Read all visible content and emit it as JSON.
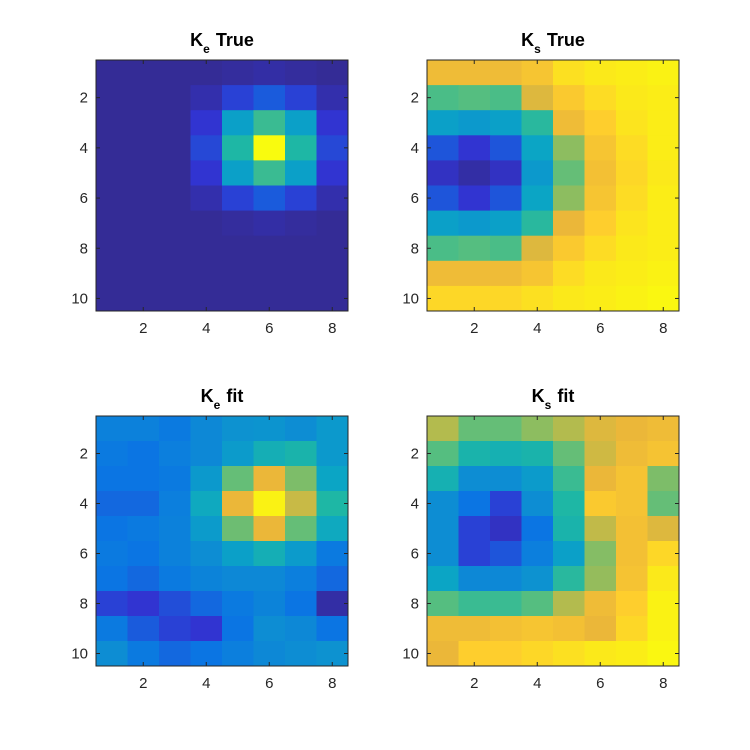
{
  "figure": {
    "background": "#ffffff"
  },
  "colormap": "parula",
  "chart_data": [
    {
      "type": "heatmap",
      "title_main": "K",
      "title_sub": "e",
      "title_rest": "True",
      "x": [
        1,
        2,
        3,
        4,
        5,
        6,
        7,
        8
      ],
      "y": [
        1,
        2,
        3,
        4,
        5,
        6,
        7,
        8,
        9,
        10
      ],
      "xticks": [
        "2",
        "4",
        "6",
        "8"
      ],
      "yticks": [
        "2",
        "4",
        "6",
        "8",
        "10"
      ],
      "clim": [
        0,
        1
      ],
      "values": [
        [
          0.02,
          0.02,
          0.02,
          0.02,
          0.03,
          0.04,
          0.03,
          0.02
        ],
        [
          0.02,
          0.02,
          0.02,
          0.05,
          0.12,
          0.16,
          0.12,
          0.05
        ],
        [
          0.02,
          0.02,
          0.02,
          0.1,
          0.38,
          0.55,
          0.38,
          0.1
        ],
        [
          0.02,
          0.02,
          0.02,
          0.13,
          0.5,
          1.0,
          0.5,
          0.13
        ],
        [
          0.02,
          0.02,
          0.02,
          0.1,
          0.38,
          0.55,
          0.38,
          0.1
        ],
        [
          0.02,
          0.02,
          0.02,
          0.05,
          0.12,
          0.16,
          0.12,
          0.05
        ],
        [
          0.02,
          0.02,
          0.02,
          0.02,
          0.03,
          0.04,
          0.03,
          0.02
        ],
        [
          0.02,
          0.02,
          0.02,
          0.02,
          0.02,
          0.02,
          0.02,
          0.02
        ],
        [
          0.02,
          0.02,
          0.02,
          0.02,
          0.02,
          0.02,
          0.02,
          0.02
        ],
        [
          0.02,
          0.02,
          0.02,
          0.02,
          0.02,
          0.02,
          0.02,
          0.02
        ]
      ]
    },
    {
      "type": "heatmap",
      "title_main": "K",
      "title_sub": "s",
      "title_rest": "True",
      "x": [
        1,
        2,
        3,
        4,
        5,
        6,
        7,
        8
      ],
      "y": [
        1,
        2,
        3,
        4,
        5,
        6,
        7,
        8,
        9,
        10
      ],
      "xticks": [
        "2",
        "4",
        "6",
        "8"
      ],
      "yticks": [
        "2",
        "4",
        "6",
        "8",
        "10"
      ],
      "clim": [
        0,
        1
      ],
      "values": [
        [
          0.82,
          0.82,
          0.82,
          0.86,
          0.94,
          0.96,
          0.97,
          0.98
        ],
        [
          0.58,
          0.6,
          0.58,
          0.78,
          0.88,
          0.93,
          0.96,
          0.97
        ],
        [
          0.38,
          0.35,
          0.38,
          0.52,
          0.82,
          0.9,
          0.95,
          0.97
        ],
        [
          0.15,
          0.1,
          0.15,
          0.4,
          0.67,
          0.86,
          0.93,
          0.97
        ],
        [
          0.08,
          0.04,
          0.08,
          0.35,
          0.62,
          0.84,
          0.92,
          0.96
        ],
        [
          0.15,
          0.1,
          0.15,
          0.4,
          0.67,
          0.86,
          0.93,
          0.97
        ],
        [
          0.38,
          0.35,
          0.38,
          0.52,
          0.8,
          0.9,
          0.95,
          0.97
        ],
        [
          0.58,
          0.6,
          0.58,
          0.78,
          0.88,
          0.93,
          0.96,
          0.97
        ],
        [
          0.82,
          0.82,
          0.82,
          0.86,
          0.93,
          0.96,
          0.97,
          0.98
        ],
        [
          0.92,
          0.92,
          0.92,
          0.94,
          0.96,
          0.97,
          0.98,
          0.99
        ]
      ]
    },
    {
      "type": "heatmap",
      "title_main": "K",
      "title_sub": "e",
      "title_rest": "fit",
      "x": [
        1,
        2,
        3,
        4,
        5,
        6,
        7,
        8
      ],
      "y": [
        1,
        2,
        3,
        4,
        5,
        6,
        7,
        8,
        9,
        10
      ],
      "xticks": [
        "2",
        "4",
        "6",
        "8"
      ],
      "yticks": [
        "2",
        "4",
        "6",
        "8",
        "10"
      ],
      "clim": [
        0,
        1
      ],
      "values": [
        [
          0.25,
          0.25,
          0.22,
          0.28,
          0.32,
          0.33,
          0.3,
          0.35
        ],
        [
          0.22,
          0.2,
          0.24,
          0.28,
          0.36,
          0.45,
          0.48,
          0.35
        ],
        [
          0.2,
          0.2,
          0.22,
          0.35,
          0.62,
          0.8,
          0.65,
          0.4
        ],
        [
          0.18,
          0.18,
          0.24,
          0.42,
          0.8,
          0.98,
          0.75,
          0.5
        ],
        [
          0.2,
          0.22,
          0.25,
          0.36,
          0.63,
          0.8,
          0.62,
          0.42
        ],
        [
          0.22,
          0.2,
          0.25,
          0.3,
          0.38,
          0.45,
          0.36,
          0.22
        ],
        [
          0.2,
          0.18,
          0.22,
          0.26,
          0.28,
          0.28,
          0.24,
          0.18
        ],
        [
          0.12,
          0.1,
          0.14,
          0.18,
          0.22,
          0.26,
          0.2,
          0.04
        ],
        [
          0.22,
          0.16,
          0.12,
          0.1,
          0.2,
          0.3,
          0.28,
          0.2
        ],
        [
          0.3,
          0.22,
          0.18,
          0.2,
          0.24,
          0.28,
          0.3,
          0.32
        ]
      ]
    },
    {
      "type": "heatmap",
      "title_main": "K",
      "title_sub": "s",
      "title_rest": "fit",
      "x": [
        1,
        2,
        3,
        4,
        5,
        6,
        7,
        8
      ],
      "y": [
        1,
        2,
        3,
        4,
        5,
        6,
        7,
        8,
        9,
        10
      ],
      "xticks": [
        "2",
        "4",
        "6",
        "8"
      ],
      "yticks": [
        "2",
        "4",
        "6",
        "8",
        "10"
      ],
      "clim": [
        0,
        1
      ],
      "values": [
        [
          0.72,
          0.62,
          0.62,
          0.67,
          0.72,
          0.78,
          0.8,
          0.82
        ],
        [
          0.6,
          0.48,
          0.46,
          0.48,
          0.62,
          0.76,
          0.82,
          0.85
        ],
        [
          0.46,
          0.3,
          0.3,
          0.36,
          0.55,
          0.8,
          0.85,
          0.65
        ],
        [
          0.3,
          0.2,
          0.12,
          0.3,
          0.5,
          0.88,
          0.85,
          0.62
        ],
        [
          0.3,
          0.12,
          0.08,
          0.2,
          0.48,
          0.74,
          0.84,
          0.78
        ],
        [
          0.3,
          0.12,
          0.15,
          0.24,
          0.38,
          0.66,
          0.84,
          0.92
        ],
        [
          0.4,
          0.28,
          0.28,
          0.32,
          0.52,
          0.68,
          0.85,
          0.96
        ],
        [
          0.6,
          0.55,
          0.55,
          0.6,
          0.72,
          0.82,
          0.9,
          0.98
        ],
        [
          0.82,
          0.82,
          0.84,
          0.86,
          0.84,
          0.8,
          0.92,
          0.98
        ],
        [
          0.8,
          0.9,
          0.9,
          0.92,
          0.94,
          0.96,
          0.97,
          0.99
        ]
      ]
    }
  ]
}
